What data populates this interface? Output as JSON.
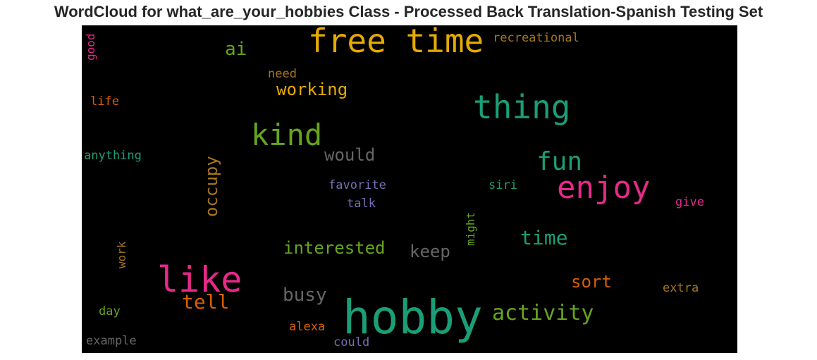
{
  "title": "WordCloud for what_are_your_hobbies Class - Processed Back Translation-Spanish Testing Set",
  "colors": {
    "background": "#000000",
    "teal": "#1b9e77",
    "orange": "#d95f02",
    "purple": "#7570b3",
    "pink": "#e7298a",
    "green": "#66a61e",
    "gold": "#e6ab02",
    "brown": "#a6761d",
    "gray": "#666666"
  },
  "chart_data": {
    "type": "wordcloud",
    "title": "WordCloud for what_are_your_hobbies Class - Processed Back Translation-Spanish Testing Set",
    "words": [
      {
        "text": "hobby",
        "weight": 1.0,
        "color": "#1b9e77",
        "rotated": false
      },
      {
        "text": "free time",
        "weight": 0.66,
        "color": "#e6ab02",
        "rotated": false
      },
      {
        "text": "like",
        "weight": 0.66,
        "color": "#e7298a",
        "rotated": false
      },
      {
        "text": "thing",
        "weight": 0.6,
        "color": "#1b9e77",
        "rotated": false
      },
      {
        "text": "enjoy",
        "weight": 0.58,
        "color": "#e7298a",
        "rotated": false
      },
      {
        "text": "kind",
        "weight": 0.56,
        "color": "#66a61e",
        "rotated": false
      },
      {
        "text": "fun",
        "weight": 0.48,
        "color": "#1b9e77",
        "rotated": false
      },
      {
        "text": "activity",
        "weight": 0.42,
        "color": "#66a61e",
        "rotated": false
      },
      {
        "text": "ai",
        "weight": 0.36,
        "color": "#66a61e",
        "rotated": false
      },
      {
        "text": "occupy",
        "weight": 0.34,
        "color": "#a6761d",
        "rotated": true
      },
      {
        "text": "time",
        "weight": 0.38,
        "color": "#1b9e77",
        "rotated": false
      },
      {
        "text": "tell",
        "weight": 0.36,
        "color": "#d95f02",
        "rotated": false
      },
      {
        "text": "interested",
        "weight": 0.34,
        "color": "#66a61e",
        "rotated": false
      },
      {
        "text": "busy",
        "weight": 0.34,
        "color": "#666666",
        "rotated": false
      },
      {
        "text": "would",
        "weight": 0.33,
        "color": "#666666",
        "rotated": false
      },
      {
        "text": "keep",
        "weight": 0.33,
        "color": "#666666",
        "rotated": false
      },
      {
        "text": "working",
        "weight": 0.32,
        "color": "#e6ab02",
        "rotated": false
      },
      {
        "text": "sort",
        "weight": 0.32,
        "color": "#d95f02",
        "rotated": false
      },
      {
        "text": "recreational",
        "weight": 0.22,
        "color": "#a6761d",
        "rotated": false
      },
      {
        "text": "need",
        "weight": 0.21,
        "color": "#a6761d",
        "rotated": false
      },
      {
        "text": "life",
        "weight": 0.2,
        "color": "#d95f02",
        "rotated": false
      },
      {
        "text": "anything",
        "weight": 0.22,
        "color": "#1b9e77",
        "rotated": false
      },
      {
        "text": "favorite",
        "weight": 0.21,
        "color": "#7570b3",
        "rotated": false
      },
      {
        "text": "talk",
        "weight": 0.21,
        "color": "#7570b3",
        "rotated": false
      },
      {
        "text": "siri",
        "weight": 0.2,
        "color": "#1b9e77",
        "rotated": false
      },
      {
        "text": "give",
        "weight": 0.21,
        "color": "#e7298a",
        "rotated": false
      },
      {
        "text": "might",
        "weight": 0.2,
        "color": "#66a61e",
        "rotated": true
      },
      {
        "text": "work",
        "weight": 0.19,
        "color": "#a6761d",
        "rotated": true
      },
      {
        "text": "good",
        "weight": 0.19,
        "color": "#e7298a",
        "rotated": true
      },
      {
        "text": "extra",
        "weight": 0.2,
        "color": "#a6761d",
        "rotated": false
      },
      {
        "text": "day",
        "weight": 0.2,
        "color": "#66a61e",
        "rotated": false
      },
      {
        "text": "alexa",
        "weight": 0.2,
        "color": "#d95f02",
        "rotated": false
      },
      {
        "text": "example",
        "weight": 0.21,
        "color": "#666666",
        "rotated": false
      },
      {
        "text": "could",
        "weight": 0.2,
        "color": "#7570b3",
        "rotated": false
      }
    ]
  }
}
